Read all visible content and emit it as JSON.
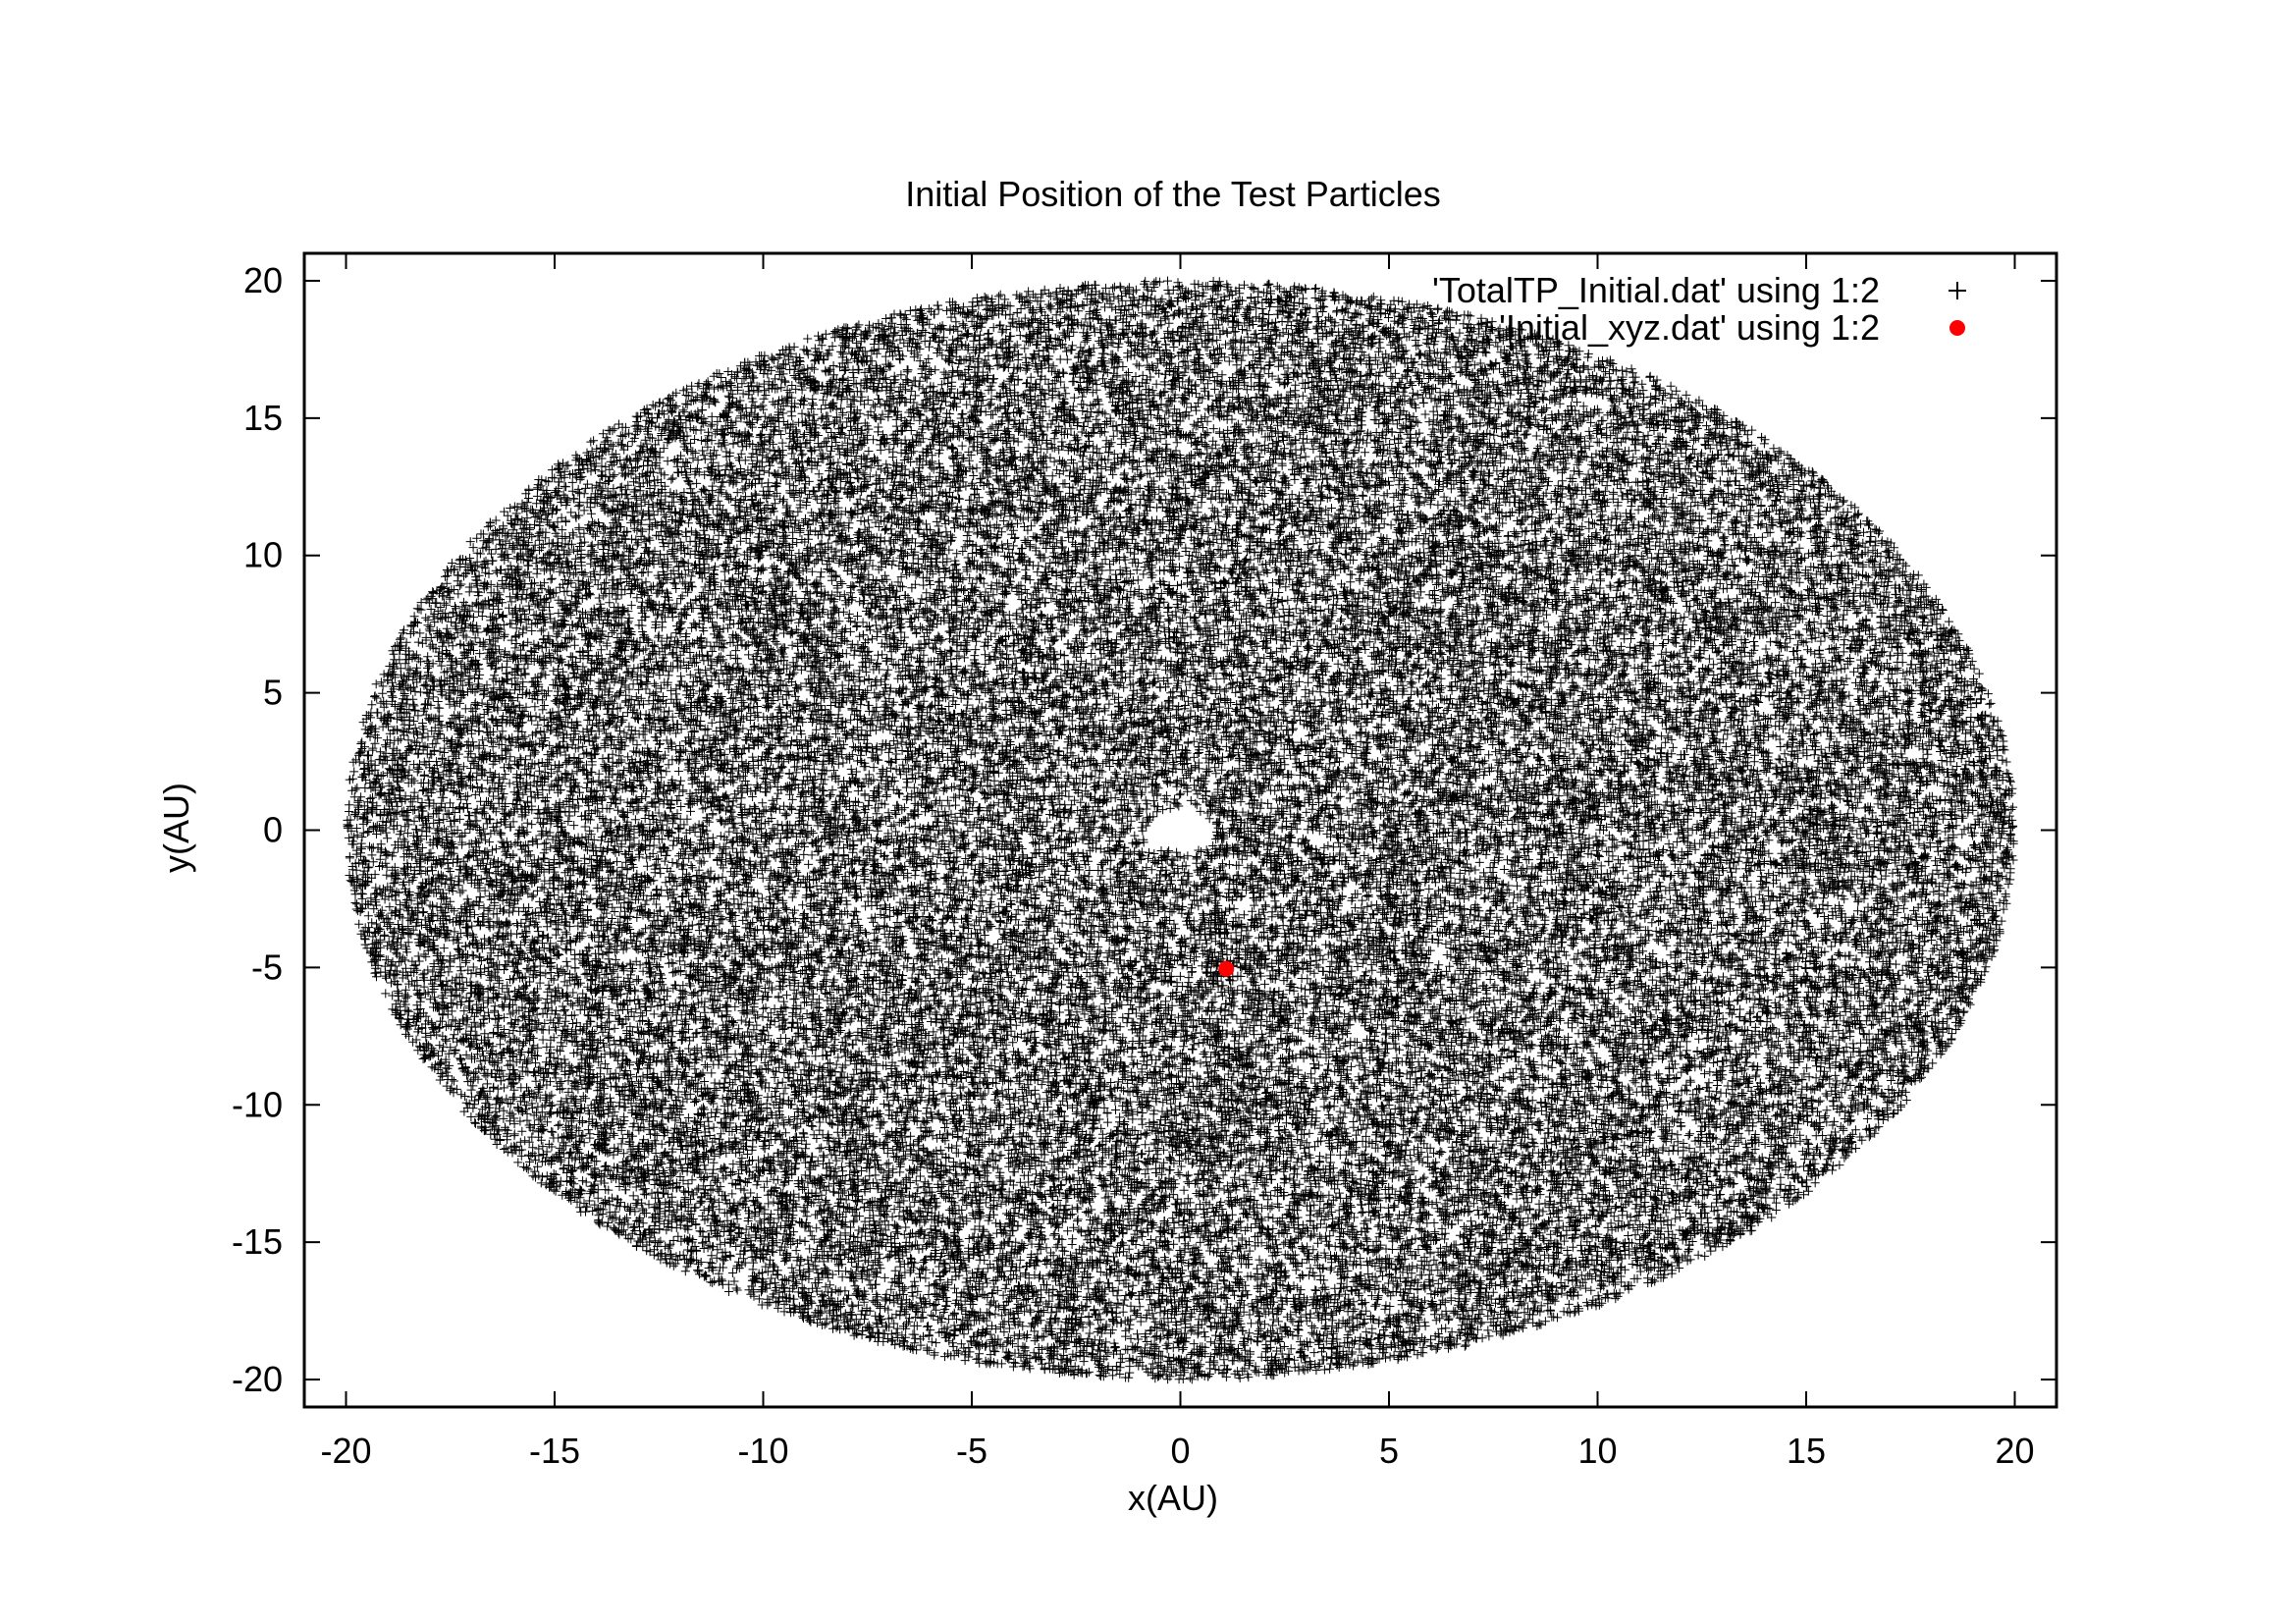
{
  "chart_data": {
    "type": "scatter",
    "title": "Initial Position of the Test Particles",
    "xlabel": "x(AU)",
    "ylabel": "y(AU)",
    "xlim": [
      -21,
      21
    ],
    "ylim": [
      -21,
      21
    ],
    "xticks": [
      -20,
      -15,
      -10,
      -5,
      0,
      5,
      10,
      15,
      20
    ],
    "yticks": [
      -20,
      -15,
      -10,
      -5,
      0,
      5,
      10,
      15,
      20
    ],
    "grid": false,
    "legend": "top-right",
    "series": [
      {
        "name": "'TotalTP_Initial.dat' using 1:2",
        "marker": "plus",
        "color": "#000000",
        "distribution": {
          "shape": "annulus",
          "center": [
            0,
            0
          ],
          "inner_radius": 0.8,
          "outer_radius": 20
        }
      },
      {
        "name": "'Initial_xyz.dat' using 1:2",
        "marker": "circle",
        "color": "#ff0000",
        "x": [
          1.1
        ],
        "y": [
          -5.05
        ]
      }
    ]
  }
}
